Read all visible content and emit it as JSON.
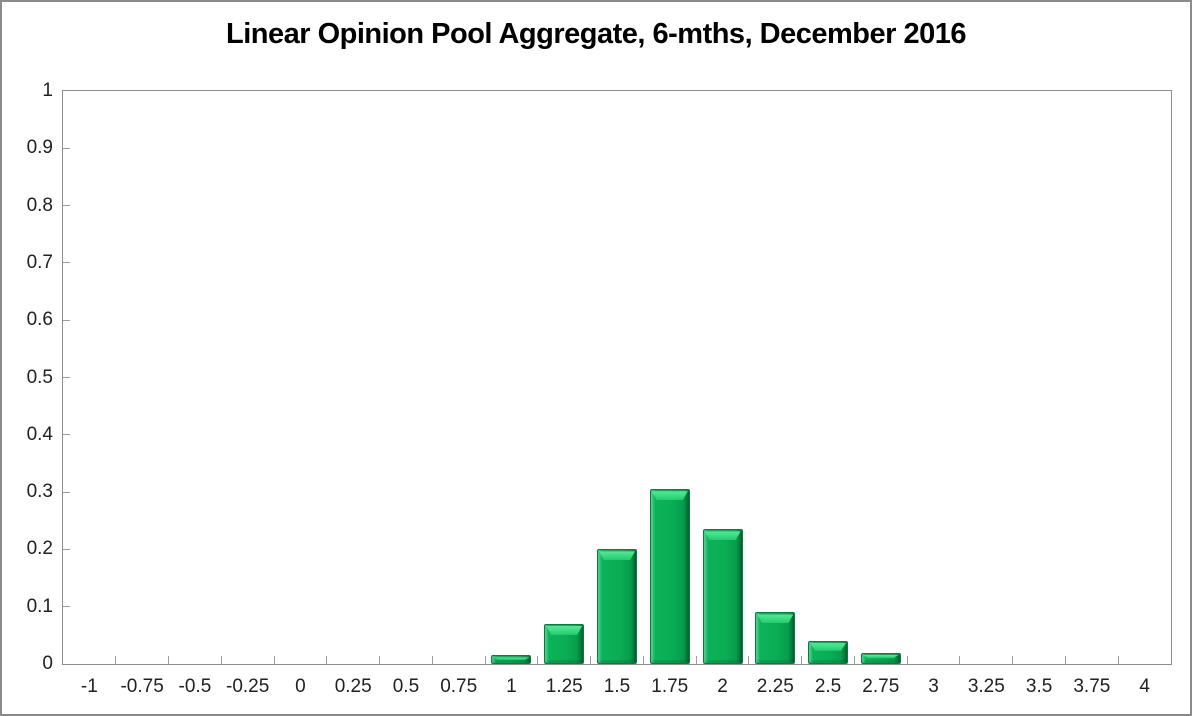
{
  "window": {
    "background": "#ffffff",
    "frame_border_color": "#8a8a8a"
  },
  "chart_data": {
    "type": "bar",
    "title": "Linear Opinion Pool Aggregate, 6-mths, December 2016",
    "xlabel": "",
    "ylabel": "",
    "categories": [
      "-1",
      "-0.75",
      "-0.5",
      "-0.25",
      "0",
      "0.25",
      "0.5",
      "0.75",
      "1",
      "1.25",
      "1.5",
      "1.75",
      "2",
      "2.25",
      "2.5",
      "2.75",
      "3",
      "3.25",
      "3.5",
      "3.75",
      "4"
    ],
    "values": [
      0,
      0,
      0,
      0,
      0,
      0,
      0,
      0,
      0.015,
      0.07,
      0.2,
      0.305,
      0.235,
      0.09,
      0.04,
      0.02,
      0,
      0,
      0,
      0,
      0
    ],
    "ylim": [
      0,
      1
    ],
    "ytick_labels": [
      "0",
      "0.1",
      "0.2",
      "0.3",
      "0.4",
      "0.5",
      "0.6",
      "0.7",
      "0.8",
      "0.9",
      "1"
    ],
    "grid": false,
    "legend": null,
    "tick_style": "inside",
    "colors": {
      "bar_fill": "#0aad54",
      "bar_highlight": "#58e898",
      "bar_border": "#067c3e",
      "plot_border": "#8e8e8e",
      "tick_color": "#9c9c9c",
      "label_color": "#212121",
      "title_color": "#000000"
    }
  }
}
